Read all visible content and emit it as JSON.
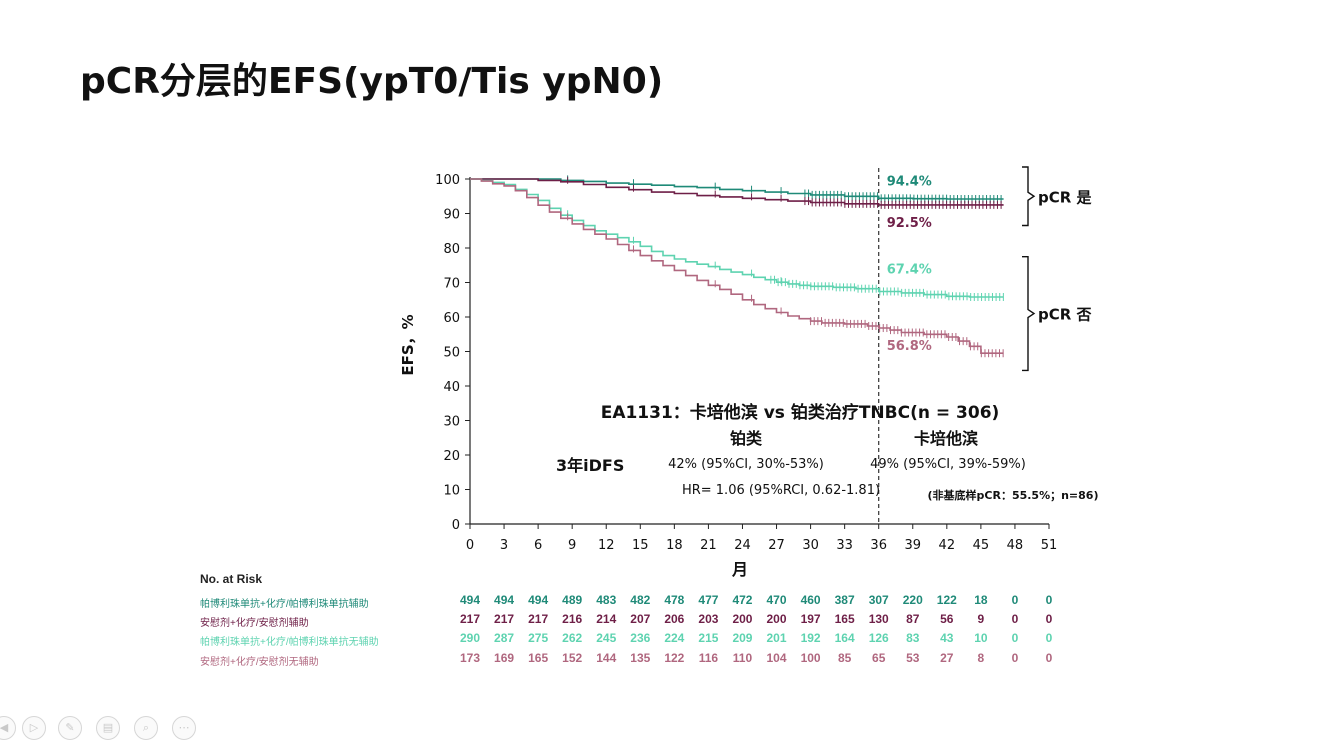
{
  "slide": {
    "title": "pCR分层的EFS(ypT0/Tis ypN0)"
  },
  "chart_data": {
    "type": "line",
    "subtype": "kaplan-meier",
    "xlabel": "月",
    "ylabel": "EFS，%",
    "xlim": [
      0,
      51
    ],
    "ylim": [
      0,
      100
    ],
    "x_ticks": [
      0,
      3,
      6,
      9,
      12,
      15,
      18,
      21,
      24,
      27,
      30,
      33,
      36,
      39,
      42,
      45,
      48,
      51
    ],
    "y_ticks": [
      0,
      10,
      20,
      30,
      40,
      50,
      60,
      70,
      80,
      90,
      100
    ],
    "reference_line_x": 36,
    "series": [
      {
        "color": "#1f8a78",
        "label_at_36": "94.4%",
        "points": [
          [
            0,
            100
          ],
          [
            3,
            100
          ],
          [
            6,
            100
          ],
          [
            8,
            99.6
          ],
          [
            10,
            99.3
          ],
          [
            12,
            98.8
          ],
          [
            14,
            98.5
          ],
          [
            16,
            98.2
          ],
          [
            18,
            97.8
          ],
          [
            20,
            97.5
          ],
          [
            22,
            97.0
          ],
          [
            24,
            96.6
          ],
          [
            26,
            96.2
          ],
          [
            28,
            95.8
          ],
          [
            30,
            95.4
          ],
          [
            33,
            95.0
          ],
          [
            36,
            94.4
          ],
          [
            39,
            94.3
          ],
          [
            42,
            94.2
          ],
          [
            45,
            94.2
          ],
          [
            47,
            94.2
          ]
        ],
        "censor_range": [
          29.5,
          47
        ]
      },
      {
        "color": "#6e1f47",
        "label_at_36": "92.5%",
        "points": [
          [
            0,
            100
          ],
          [
            3,
            100
          ],
          [
            6,
            99.6
          ],
          [
            8,
            99.2
          ],
          [
            10,
            98.4
          ],
          [
            12,
            97.6
          ],
          [
            14,
            96.9
          ],
          [
            16,
            96.2
          ],
          [
            18,
            95.8
          ],
          [
            20,
            95.2
          ],
          [
            22,
            94.8
          ],
          [
            24,
            94.4
          ],
          [
            26,
            94.0
          ],
          [
            28,
            93.6
          ],
          [
            30,
            93.2
          ],
          [
            33,
            92.8
          ],
          [
            36,
            92.5
          ],
          [
            39,
            92.5
          ],
          [
            42,
            92.5
          ],
          [
            45,
            92.5
          ],
          [
            47,
            92.5
          ]
        ],
        "censor_range": [
          29.5,
          47
        ]
      },
      {
        "color": "#5ed3b0",
        "label_at_36": "67.4%",
        "points": [
          [
            0,
            100
          ],
          [
            1,
            99.5
          ],
          [
            2,
            99
          ],
          [
            3,
            98.4
          ],
          [
            4,
            97
          ],
          [
            5,
            95.5
          ],
          [
            6,
            93.8
          ],
          [
            7,
            91.5
          ],
          [
            8,
            89.5
          ],
          [
            9,
            88
          ],
          [
            10,
            86.5
          ],
          [
            11,
            85
          ],
          [
            12,
            84
          ],
          [
            13,
            83
          ],
          [
            14,
            81.8
          ],
          [
            15,
            80.5
          ],
          [
            16,
            79
          ],
          [
            17,
            77.8
          ],
          [
            18,
            76.8
          ],
          [
            19,
            76
          ],
          [
            20,
            75.3
          ],
          [
            21,
            74.6
          ],
          [
            22,
            73.8
          ],
          [
            23,
            73
          ],
          [
            24,
            72.3
          ],
          [
            25,
            71.5
          ],
          [
            26,
            70.8
          ],
          [
            27,
            70.1
          ],
          [
            28,
            69.6
          ],
          [
            29,
            69.2
          ],
          [
            30,
            68.9
          ],
          [
            32,
            68.6
          ],
          [
            34,
            68.2
          ],
          [
            36,
            67.4
          ],
          [
            38,
            67
          ],
          [
            40,
            66.5
          ],
          [
            42,
            66
          ],
          [
            44,
            65.8
          ],
          [
            46,
            65.8
          ],
          [
            47,
            65.8
          ]
        ],
        "censor_range": [
          26.5,
          47
        ]
      },
      {
        "color": "#b0677f",
        "label_at_36": "56.8%",
        "points": [
          [
            0,
            100
          ],
          [
            1,
            99.4
          ],
          [
            2,
            98.6
          ],
          [
            3,
            98
          ],
          [
            4,
            96.6
          ],
          [
            5,
            94.6
          ],
          [
            6,
            92.4
          ],
          [
            7,
            90.4
          ],
          [
            8,
            88.6
          ],
          [
            9,
            87
          ],
          [
            10,
            85.4
          ],
          [
            11,
            84
          ],
          [
            12,
            82.6
          ],
          [
            13,
            81
          ],
          [
            14,
            79.3
          ],
          [
            15,
            77.8
          ],
          [
            16,
            76.3
          ],
          [
            17,
            74.9
          ],
          [
            18,
            73.5
          ],
          [
            19,
            72
          ],
          [
            20,
            70.6
          ],
          [
            21,
            69.2
          ],
          [
            22,
            68
          ],
          [
            23,
            66.6
          ],
          [
            24,
            65
          ],
          [
            25,
            63.6
          ],
          [
            26,
            62.4
          ],
          [
            27,
            61.3
          ],
          [
            28,
            60.3
          ],
          [
            29,
            59.5
          ],
          [
            30,
            58.8
          ],
          [
            31,
            58.3
          ],
          [
            33,
            58
          ],
          [
            35,
            57.4
          ],
          [
            36,
            56.8
          ],
          [
            37,
            56.2
          ],
          [
            38,
            55.5
          ],
          [
            40,
            55
          ],
          [
            42,
            54.2
          ],
          [
            43,
            53
          ],
          [
            44,
            51.5
          ],
          [
            45,
            49.5
          ],
          [
            46,
            49.5
          ],
          [
            47,
            49.5
          ]
        ],
        "censor_range": [
          30,
          47
        ]
      }
    ],
    "brackets": [
      {
        "label": "pCR  是",
        "y_from": 100,
        "y_to": 90
      },
      {
        "label": "pCR  否",
        "y_from": 74,
        "y_to": 48
      }
    ],
    "annotations": {
      "study": "EA1131：卡培他滨 vs 铂类治疗TNBC(n = 306)",
      "arm_left": "铂类",
      "arm_right": "卡培他滨",
      "row_label": "3年iDFS",
      "left_value": "42% (95%CI, 30%-53%)",
      "right_value": "49% (95%CI, 39%-59%)",
      "hr": "HR= 1.06 (95%RCI, 0.62-1.81)",
      "note": "(非基底样pCR：55.5%；n=86)"
    }
  },
  "risk_table": {
    "header": "No. at Risk",
    "rows": [
      {
        "label": "帕博利珠单抗+化疗/帕博利珠单抗辅助",
        "color": "#1f8a78",
        "values": [
          "494",
          "494",
          "494",
          "489",
          "483",
          "482",
          "478",
          "477",
          "472",
          "470",
          "460",
          "387",
          "307",
          "220",
          "122",
          "18",
          "0",
          "0"
        ]
      },
      {
        "label": "安慰剂+化疗/安慰剂辅助",
        "color": "#6e1f47",
        "values": [
          "217",
          "217",
          "217",
          "216",
          "214",
          "207",
          "206",
          "203",
          "200",
          "200",
          "197",
          "165",
          "130",
          "87",
          "56",
          "9",
          "0",
          "0"
        ]
      },
      {
        "label": "帕博利珠单抗+化疗/帕博利珠单抗无辅助",
        "color": "#5ed3b0",
        "values": [
          "290",
          "287",
          "275",
          "262",
          "245",
          "236",
          "224",
          "215",
          "209",
          "201",
          "192",
          "164",
          "126",
          "83",
          "43",
          "10",
          "0",
          "0"
        ]
      },
      {
        "label": "安慰剂+化疗/安慰剂无辅助",
        "color": "#b0677f",
        "values": [
          "173",
          "169",
          "165",
          "152",
          "144",
          "135",
          "122",
          "116",
          "110",
          "104",
          "100",
          "85",
          "65",
          "53",
          "27",
          "8",
          "0",
          "0"
        ]
      }
    ]
  },
  "toolbar": {
    "icons": [
      "prev-icon",
      "play-icon",
      "pen-icon",
      "slides-icon",
      "zoom-icon",
      "more-icon"
    ]
  }
}
